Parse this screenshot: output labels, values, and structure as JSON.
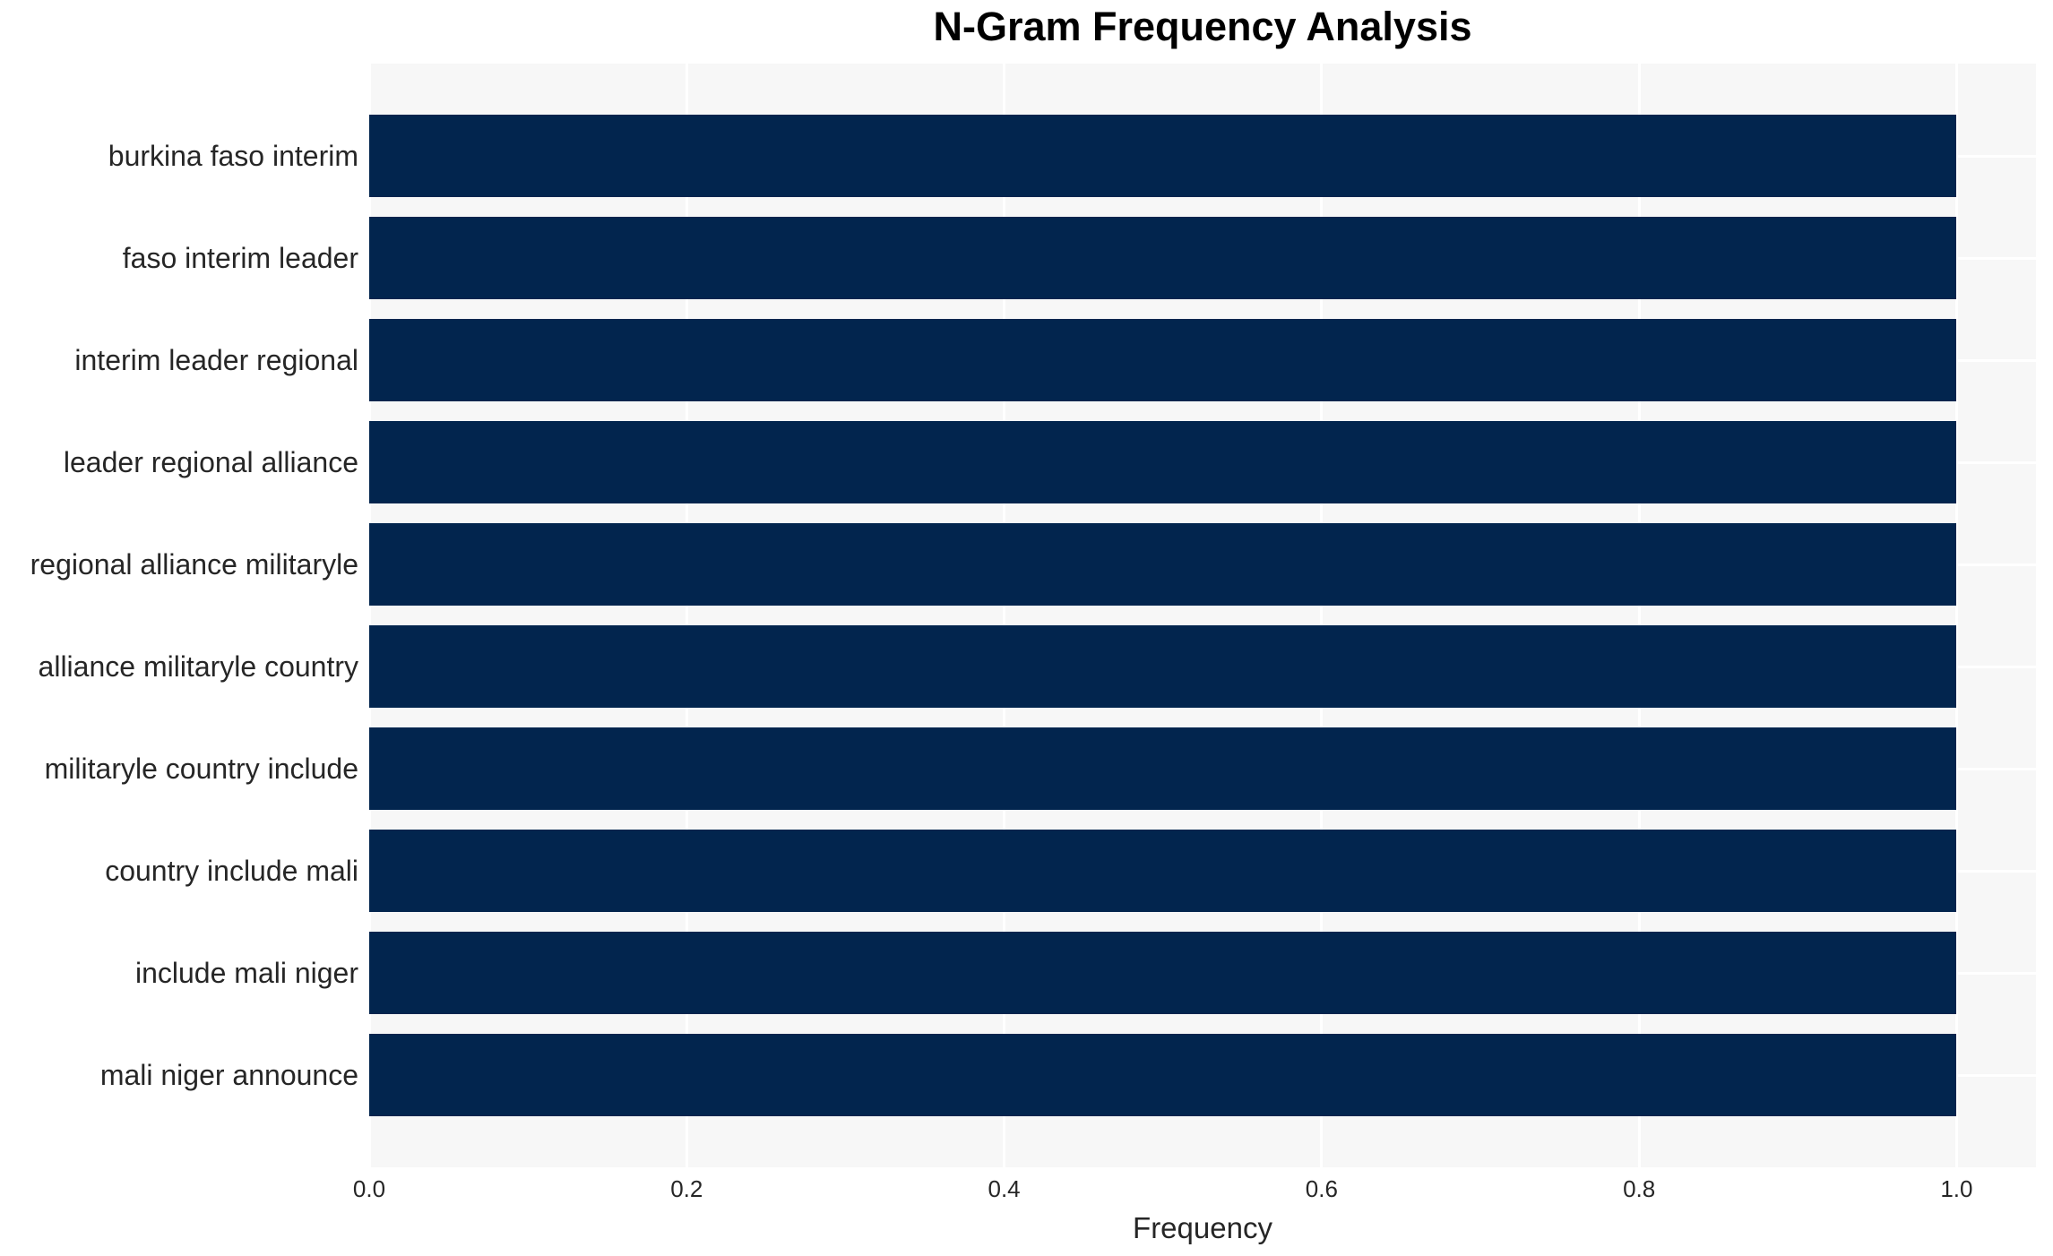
{
  "chart_data": {
    "type": "bar",
    "orientation": "horizontal",
    "title": "N-Gram Frequency Analysis",
    "xlabel": "Frequency",
    "ylabel": "",
    "categories": [
      "burkina faso interim",
      "faso interim leader",
      "interim leader regional",
      "leader regional alliance",
      "regional alliance militaryle",
      "alliance militaryle country",
      "militaryle country include",
      "country include mali",
      "include mali niger",
      "mali niger announce"
    ],
    "values": [
      1.0,
      1.0,
      1.0,
      1.0,
      1.0,
      1.0,
      1.0,
      1.0,
      1.0,
      1.0
    ],
    "xlim": [
      0,
      1.05
    ],
    "xticks": [
      0.0,
      0.2,
      0.4,
      0.6,
      0.8,
      1.0
    ],
    "xtick_labels": [
      "0.0",
      "0.2",
      "0.4",
      "0.6",
      "0.8",
      "1.0"
    ],
    "grid": true,
    "legend": false,
    "colors": {
      "bar": "#02254e",
      "plot_background": "#f7f7f7",
      "gridline": "#ffffff",
      "tick_text": "#262626",
      "title_text": "#000000"
    }
  }
}
